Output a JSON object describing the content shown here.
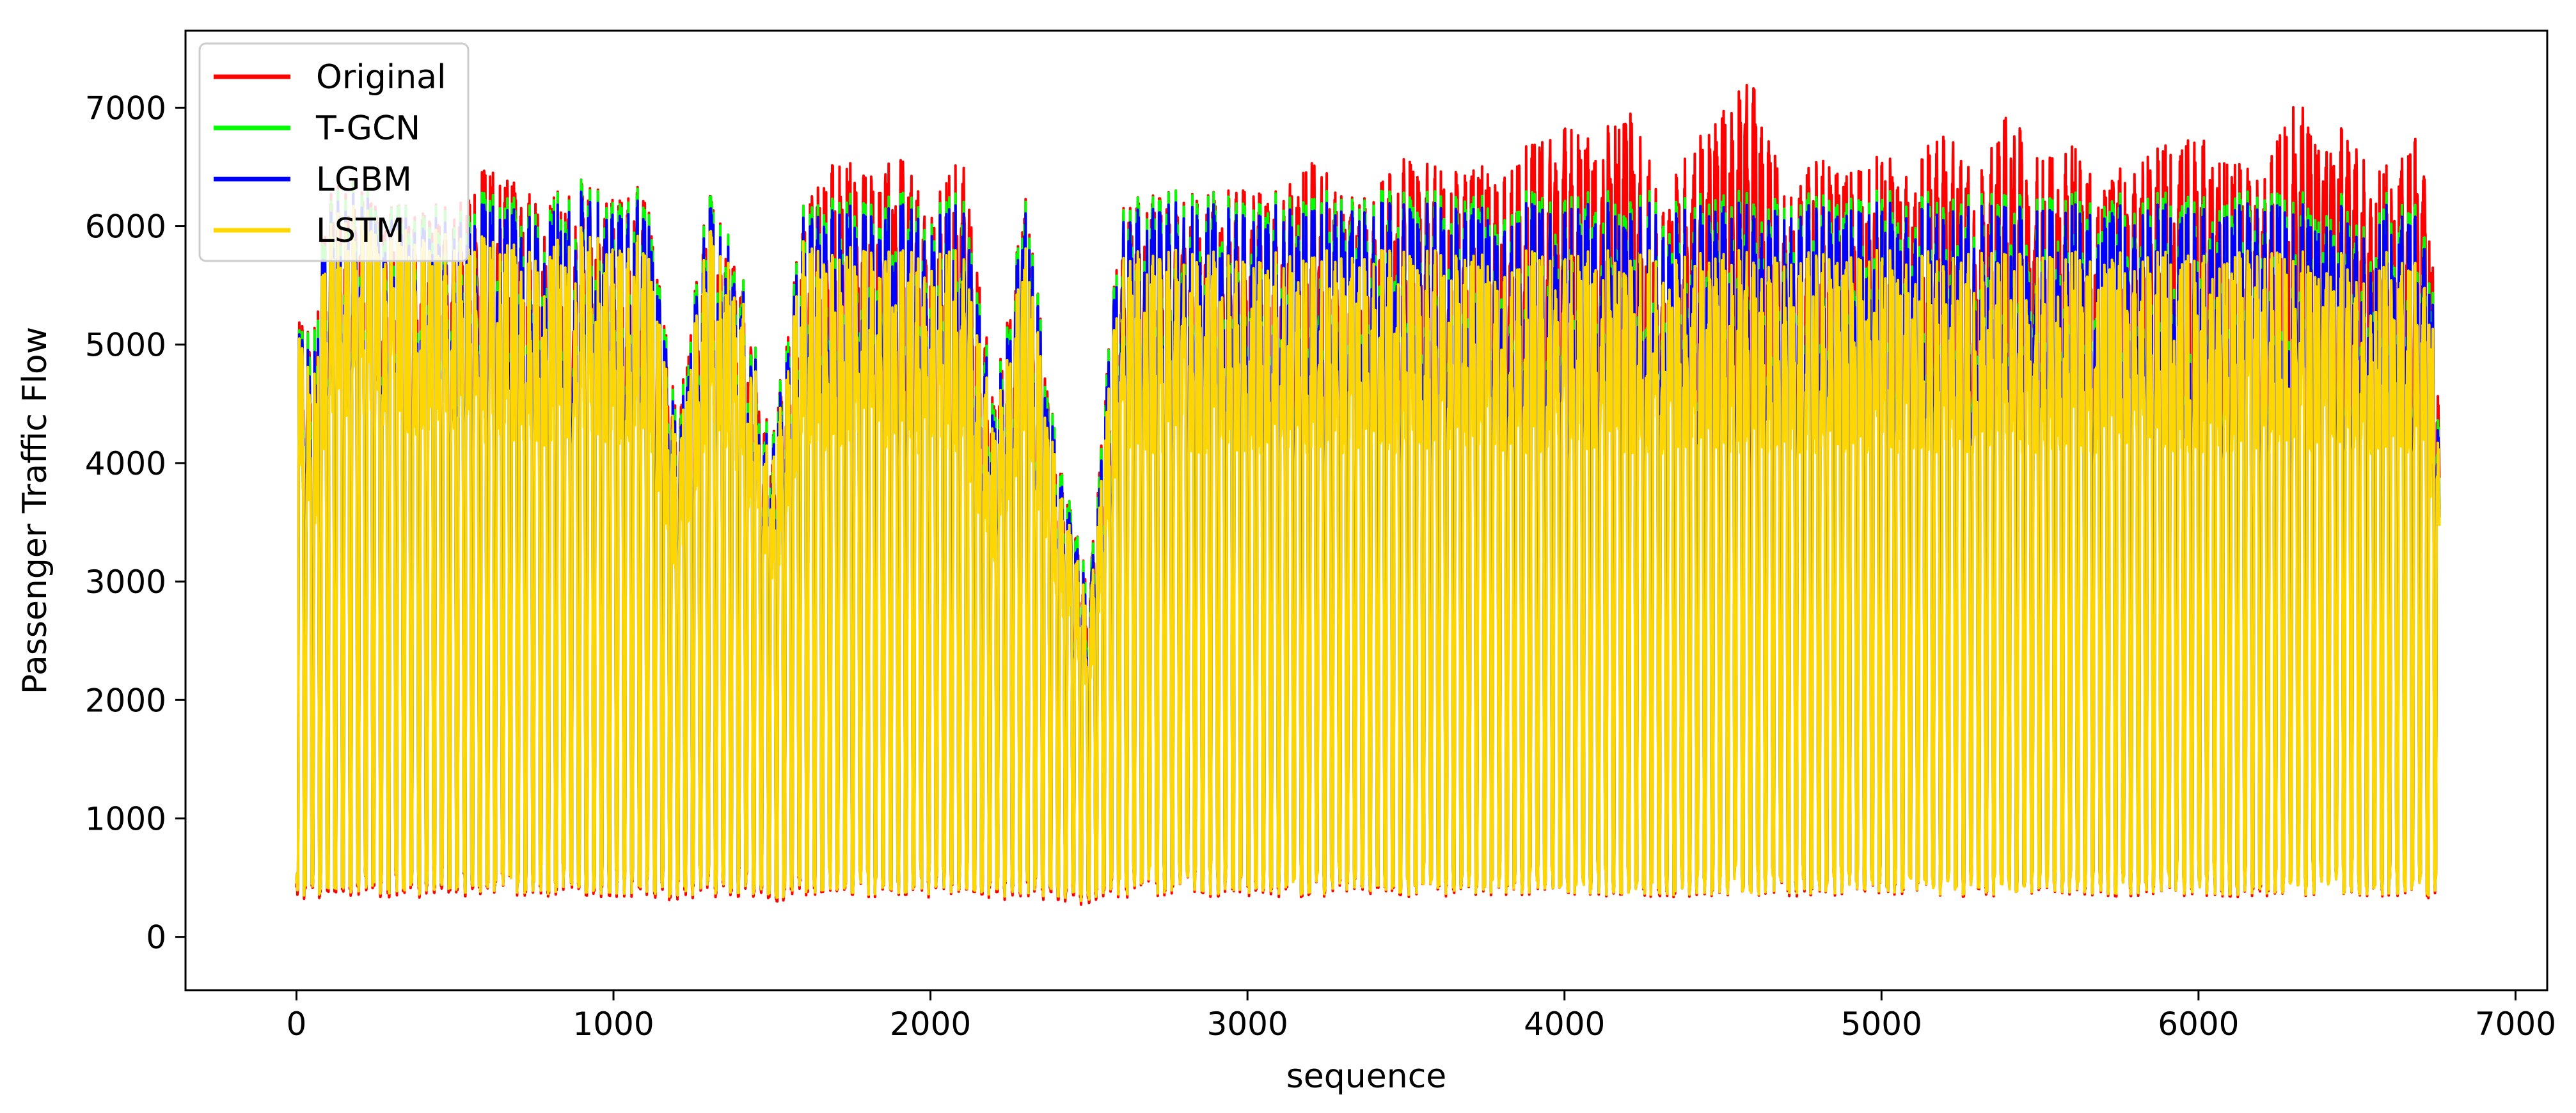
{
  "chart_data": {
    "type": "line",
    "title": "",
    "xlabel": "sequence",
    "ylabel": "Passenger Traffic Flow",
    "xlim": [
      -350,
      7100
    ],
    "ylim": [
      -450,
      7650
    ],
    "x_ticks": [
      0,
      1000,
      2000,
      3000,
      4000,
      5000,
      6000,
      7000
    ],
    "y_ticks": [
      0,
      1000,
      2000,
      3000,
      4000,
      5000,
      6000,
      7000
    ],
    "x_range": [
      0,
      6760
    ],
    "grid": false,
    "legend_position": "upper-left",
    "series": [
      {
        "name": "Original",
        "color": "#ff0000",
        "note_peak": 7280
      },
      {
        "name": "T-GCN",
        "color": "#00ff00"
      },
      {
        "name": "LGBM",
        "color": "#0000ff"
      },
      {
        "name": "LSTM",
        "color": "#ffd700"
      }
    ],
    "peak_envelope": {
      "x": [
        0,
        50,
        100,
        200,
        300,
        400,
        500,
        600,
        700,
        800,
        900,
        1000,
        1100,
        1200,
        1300,
        1400,
        1500,
        1600,
        1700,
        1800,
        1900,
        2000,
        2100,
        2200,
        2300,
        2400,
        2500,
        2600,
        2700,
        2800,
        2900,
        3000,
        3100,
        3200,
        3300,
        3400,
        3500,
        3600,
        3700,
        3800,
        3900,
        4000,
        4100,
        4200,
        4300,
        4400,
        4500,
        4600,
        4700,
        4800,
        4900,
        5000,
        5100,
        5200,
        5300,
        5400,
        5500,
        5600,
        5700,
        5800,
        5900,
        6000,
        6100,
        6200,
        6300,
        6400,
        6500,
        6600,
        6700,
        6760
      ],
      "original": [
        5500,
        5000,
        6500,
        6400,
        6200,
        6200,
        6300,
        6500,
        6400,
        6300,
        6400,
        6300,
        6400,
        4500,
        6300,
        5700,
        4200,
        6200,
        6600,
        6500,
        6600,
        6200,
        6600,
        4600,
        6300,
        4100,
        3000,
        6200,
        6300,
        6300,
        6300,
        6400,
        6300,
        6600,
        6300,
        6300,
        6600,
        6500,
        6500,
        6600,
        6700,
        6900,
        6700,
        7100,
        6300,
        6700,
        7000,
        7280,
        6300,
        6600,
        6500,
        6600,
        6500,
        6900,
        6400,
        7000,
        6600,
        6700,
        6400,
        6600,
        6700,
        6800,
        6600,
        6400,
        7100,
        6800,
        6900,
        6500,
        6900,
        5000
      ],
      "tgcn": [
        5500,
        5000,
        6500,
        6400,
        6200,
        6200,
        6300,
        6300,
        6300,
        6300,
        6400,
        6300,
        6400,
        4500,
        6300,
        5700,
        4200,
        6200,
        6300,
        6300,
        6300,
        6200,
        6300,
        4600,
        6300,
        4100,
        3000,
        6200,
        6300,
        6300,
        6300,
        6300,
        6300,
        6300,
        6300,
        6300,
        6300,
        6300,
        6300,
        6300,
        6300,
        6300,
        6300,
        6300,
        6300,
        6300,
        6300,
        6300,
        6300,
        6300,
        6300,
        6300,
        6300,
        6300,
        6300,
        6300,
        6300,
        6300,
        6300,
        6300,
        6300,
        6300,
        6300,
        6300,
        6300,
        6300,
        6300,
        6300,
        6300,
        5000
      ],
      "lgbm": [
        5500,
        4800,
        6400,
        6300,
        6100,
        6100,
        6200,
        6200,
        6200,
        6200,
        6300,
        6200,
        6300,
        4400,
        6200,
        5600,
        4100,
        6100,
        6200,
        6200,
        6200,
        6100,
        6200,
        4500,
        6200,
        4000,
        2900,
        6100,
        6200,
        6200,
        6200,
        6200,
        6200,
        6200,
        6200,
        6200,
        6200,
        6200,
        6200,
        6200,
        6200,
        6200,
        6200,
        6200,
        6200,
        6200,
        6200,
        6200,
        6200,
        6200,
        6200,
        6200,
        6200,
        6200,
        6200,
        6200,
        6200,
        6200,
        6200,
        6200,
        6200,
        6200,
        6200,
        6200,
        6200,
        6200,
        6200,
        6200,
        6200,
        4900
      ],
      "lstm": [
        5500,
        4600,
        6300,
        6200,
        6000,
        6000,
        6100,
        5900,
        5900,
        5900,
        6000,
        5900,
        6000,
        4300,
        6000,
        5500,
        4000,
        5900,
        5800,
        5900,
        5800,
        5800,
        5800,
        4400,
        5900,
        3900,
        2800,
        5800,
        5800,
        5800,
        5800,
        5800,
        5800,
        5800,
        5800,
        5800,
        5800,
        5800,
        5800,
        5800,
        5800,
        5800,
        5800,
        5800,
        5800,
        5800,
        5800,
        5800,
        5800,
        5800,
        5800,
        5800,
        5800,
        5800,
        5800,
        5800,
        5800,
        5800,
        5800,
        5800,
        5800,
        5800,
        5800,
        5800,
        5800,
        5800,
        5800,
        5800,
        5800,
        4800
      ]
    },
    "trough_level": 250,
    "cycle_length": 24
  }
}
